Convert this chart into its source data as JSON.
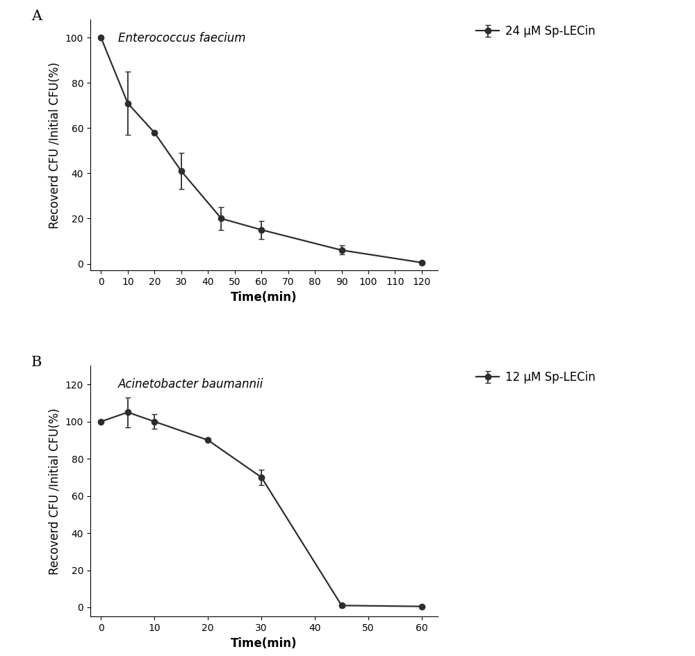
{
  "panel_A": {
    "title": "Enterococcus faecium",
    "legend_label": "24 μM Sp-LECin",
    "x": [
      0,
      10,
      20,
      30,
      45,
      60,
      90,
      120
    ],
    "y": [
      100,
      71,
      58,
      41,
      20,
      15,
      6,
      0.5
    ],
    "yerr": [
      0,
      14,
      0,
      8,
      5,
      4,
      2,
      0.5
    ],
    "xlabel": "Time(min)",
    "ylabel": "Recoverd CFU /Initial CFU(%)",
    "xlim": [
      -4,
      126
    ],
    "ylim": [
      -3,
      108
    ],
    "xticks": [
      0,
      10,
      20,
      30,
      40,
      50,
      60,
      70,
      80,
      90,
      100,
      110,
      120
    ],
    "yticks": [
      0,
      20,
      40,
      60,
      80,
      100
    ]
  },
  "panel_B": {
    "title": "Acinetobacter baumannii",
    "legend_label": "12 μM Sp-LECin",
    "x": [
      0,
      5,
      10,
      20,
      30,
      45,
      60
    ],
    "y": [
      100,
      105,
      100,
      90,
      70,
      1,
      0.5
    ],
    "yerr": [
      0,
      8,
      4,
      0,
      4,
      1,
      0.3
    ],
    "xlabel": "Time(min)",
    "ylabel": "Recoverd CFU /Initial CFU(%)",
    "xlim": [
      -2,
      63
    ],
    "ylim": [
      -5,
      130
    ],
    "xticks": [
      0,
      10,
      20,
      30,
      40,
      50,
      60
    ],
    "yticks": [
      0,
      20,
      40,
      60,
      80,
      100,
      120
    ]
  },
  "line_color": "#2d2d2d",
  "marker": "o",
  "markersize": 6,
  "linewidth": 1.6,
  "capsize": 3,
  "elinewidth": 1.3,
  "label_fontsize": 12,
  "tick_fontsize": 10,
  "legend_fontsize": 12,
  "panel_label_fontsize": 15,
  "title_fontsize": 12
}
